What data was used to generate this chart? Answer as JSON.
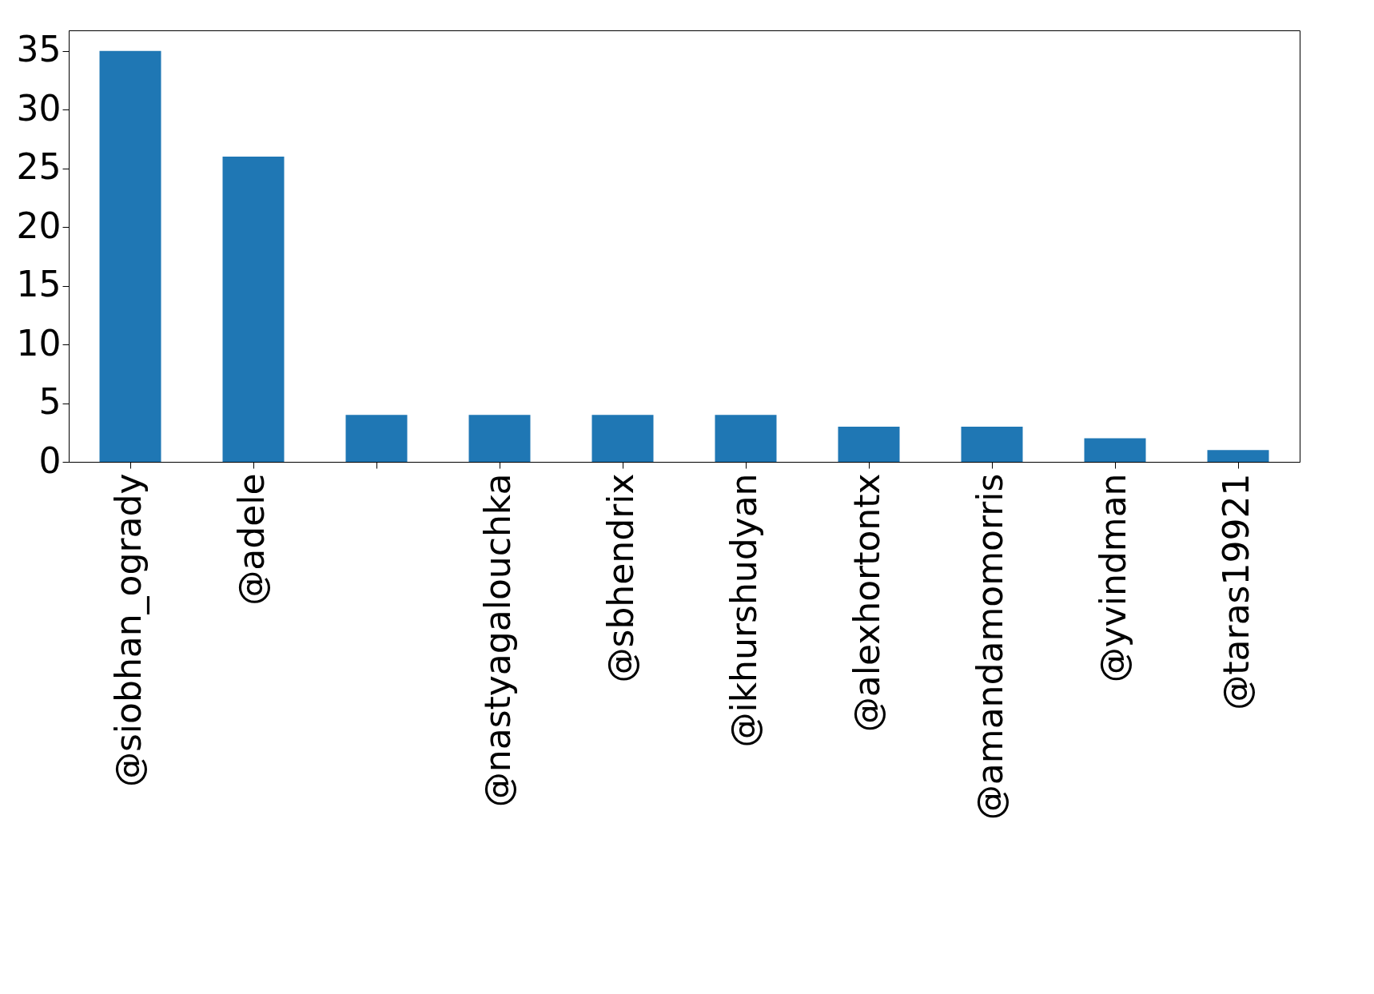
{
  "chart_data": {
    "type": "bar",
    "categories": [
      "@siobhan_ogrady",
      "@adele",
      null,
      "@nastyagalouchka",
      "@sbhendrix",
      "@ikhurshudyan",
      "@alexhortontx",
      "@amandamomorris",
      "@yvindman",
      "@taras19921"
    ],
    "values": [
      35,
      26,
      4,
      4,
      4,
      4,
      3,
      3,
      2,
      1
    ],
    "color": "#1f77b4",
    "ylim": [
      0,
      36.75
    ],
    "yticks": [
      0,
      5,
      10,
      15,
      20,
      25,
      30,
      35
    ],
    "grid": false
  }
}
